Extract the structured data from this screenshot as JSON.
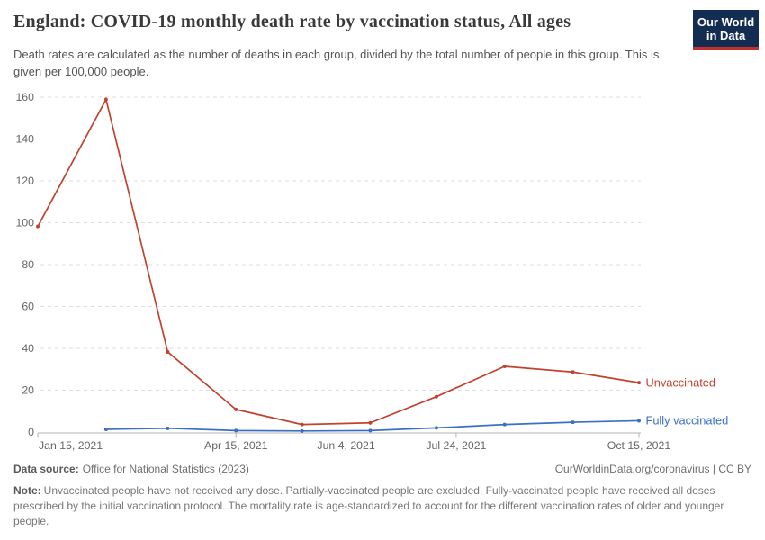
{
  "header": {
    "title": "England: COVID-19 monthly death rate by vaccination status, All ages",
    "subtitle": "Death rates are calculated as the number of deaths in each group, divided by the total number of people in this group. This is given per 100,000 people.",
    "logo": {
      "line1": "Our World",
      "line2": "in Data"
    }
  },
  "chart_data": {
    "type": "line",
    "title": "England: COVID-19 monthly death rate by vaccination status, All ages",
    "xlabel": "",
    "ylabel": "",
    "ylim": [
      0,
      160
    ],
    "y_ticks": [
      0,
      20,
      40,
      60,
      80,
      100,
      120,
      140,
      160
    ],
    "x": [
      "Jan 15, 2021",
      "Feb 15, 2021",
      "Mar 15, 2021",
      "Apr 15, 2021",
      "May 15, 2021",
      "Jun 15, 2021",
      "Jul 15, 2021",
      "Aug 15, 2021",
      "Sep 15, 2021",
      "Oct 15, 2021"
    ],
    "x_tick_labels": [
      "Jan 15, 2021",
      "Apr 15, 2021",
      "Jun 4, 2021",
      "Jul 24, 2021",
      "Oct 15, 2021"
    ],
    "grid": "horizontal-dashed",
    "legend": "line-end-labels",
    "series": [
      {
        "name": "Unvaccinated",
        "color": "#c0432f",
        "values": [
          98.2,
          158.9,
          38.3,
          10.8,
          3.6,
          4.4,
          16.9,
          31.4,
          28.7,
          23.6
        ]
      },
      {
        "name": "Fully vaccinated",
        "color": "#3b6fc6",
        "values": [
          null,
          1.3,
          1.8,
          0.7,
          0.5,
          0.7,
          2.0,
          3.6,
          4.7,
          5.4
        ]
      }
    ],
    "colors": {
      "axis": "#b3b3b3",
      "gridline": "#dcdcdc",
      "tick_text": "#666666"
    }
  },
  "footer": {
    "data_source_label": "Data source:",
    "data_source_value": "Office for National Statistics (2023)",
    "attribution": "OurWorldinData.org/coronavirus | CC BY",
    "note_label": "Note:",
    "note_text": "Unvaccinated people have not received any dose. Partially-vaccinated people are excluded. Fully-vaccinated people have received all doses prescribed by the initial vaccination protocol. The mortality rate is age-standardized to account for the different vaccination rates of older and younger people."
  }
}
